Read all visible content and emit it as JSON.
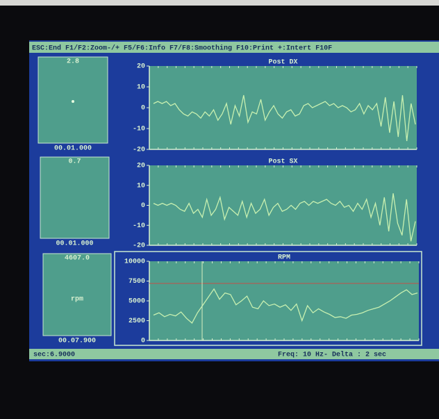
{
  "menu_bar": "ESC:End F1/F2:Zoom-/+ F5/F6:Info F7/F8:Smoothing F10:Print +:Intert   F10F",
  "gauges": [
    {
      "value": "2.8",
      "time": "00.01.000"
    },
    {
      "value": "0.7",
      "time": "00.01.000"
    },
    {
      "value": "4607.0",
      "unit": "rpm",
      "time": "00.07.900"
    }
  ],
  "chart_data": [
    {
      "type": "line",
      "title": "Post DX",
      "color": "#c8f0b0",
      "ylim": [
        -20,
        20
      ],
      "yticks": [
        -20,
        -10,
        0,
        10,
        20
      ],
      "values": [
        2,
        3,
        2,
        3,
        1,
        2,
        -1,
        -3,
        -4,
        -2,
        -3,
        -5,
        -2,
        -4,
        -1,
        -6,
        -3,
        2,
        -8,
        1,
        -4,
        6,
        -7,
        -2,
        -3,
        4,
        -6,
        -2,
        1,
        -3,
        -5,
        -2,
        -1,
        -4,
        -3,
        1,
        2,
        0,
        1,
        2,
        3,
        1,
        2,
        0,
        1,
        0,
        -2,
        -1,
        2,
        -3,
        1,
        -1,
        2,
        -9,
        5,
        -12,
        3,
        -14,
        6,
        -16,
        2,
        -8
      ]
    },
    {
      "type": "line",
      "title": "Post SX",
      "color": "#c8f0b0",
      "ylim": [
        -20,
        20
      ],
      "yticks": [
        -20,
        -10,
        0,
        10,
        20
      ],
      "values": [
        1,
        0,
        1,
        0,
        1,
        0,
        -2,
        -3,
        1,
        -4,
        -2,
        -6,
        3,
        -5,
        -2,
        4,
        -7,
        -1,
        -3,
        -5,
        2,
        -6,
        1,
        -4,
        -2,
        3,
        -5,
        -1,
        1,
        -3,
        -2,
        0,
        -2,
        1,
        2,
        0,
        2,
        1,
        2,
        3,
        1,
        0,
        2,
        -1,
        0,
        -3,
        1,
        -2,
        3,
        -6,
        1,
        -10,
        4,
        -13,
        6,
        -9,
        -15,
        3,
        -18,
        -8
      ]
    },
    {
      "type": "line",
      "title": "RPM",
      "color": "#c8f0b0",
      "ylim": [
        0,
        10000
      ],
      "yticks": [
        0,
        2500,
        5000,
        7500,
        10000
      ],
      "reference_line": 7200,
      "reference_color": "#c0504a",
      "values": [
        3200,
        3500,
        3000,
        3300,
        3100,
        3600,
        2800,
        2200,
        3500,
        4500,
        5500,
        6500,
        5200,
        6000,
        5800,
        4500,
        5000,
        5600,
        4200,
        4000,
        5000,
        4400,
        4600,
        4200,
        4500,
        3800,
        4600,
        2500,
        4400,
        3500,
        4000,
        3600,
        3300,
        2900,
        3000,
        2800,
        3200,
        3300,
        3500,
        3800,
        4000,
        4200,
        4600,
        5000,
        5500,
        6000,
        6400,
        5800,
        6000
      ]
    }
  ],
  "status_bar": {
    "left": "sec:6.9000",
    "right": "Freq:  10  Hz- Delta : 2 sec"
  }
}
